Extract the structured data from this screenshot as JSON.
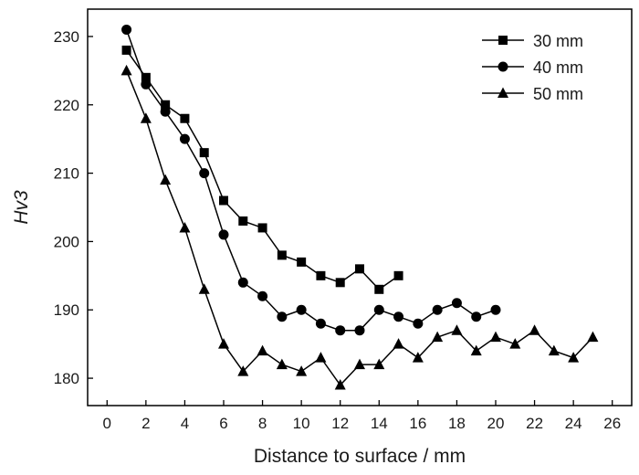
{
  "chart_data": {
    "type": "line",
    "xlabel": "Distance to surface / mm",
    "ylabel": "Hv3",
    "xlim": [
      -1,
      27
    ],
    "ylim": [
      176,
      234
    ],
    "xticks": [
      0,
      2,
      4,
      6,
      8,
      10,
      12,
      14,
      16,
      18,
      20,
      22,
      24,
      26
    ],
    "yticks": [
      180,
      190,
      200,
      210,
      220,
      230
    ],
    "grid": false,
    "legend_position": "top-right",
    "series": [
      {
        "name": "30 mm",
        "marker": "square",
        "color": "#000000",
        "x": [
          1,
          2,
          3,
          4,
          5,
          6,
          7,
          8,
          9,
          10,
          11,
          12,
          13,
          14,
          15
        ],
        "y": [
          228,
          224,
          220,
          218,
          213,
          206,
          203,
          202,
          198,
          197,
          195,
          194,
          196,
          193,
          195
        ]
      },
      {
        "name": "40 mm",
        "marker": "circle",
        "color": "#000000",
        "x": [
          1,
          2,
          3,
          4,
          5,
          6,
          7,
          8,
          9,
          10,
          11,
          12,
          13,
          14,
          15,
          16,
          17,
          18,
          19,
          20
        ],
        "y": [
          231,
          223,
          219,
          215,
          210,
          201,
          194,
          192,
          189,
          190,
          188,
          187,
          187,
          190,
          189,
          188,
          190,
          191,
          189,
          190
        ]
      },
      {
        "name": "50 mm",
        "marker": "triangle",
        "color": "#000000",
        "x": [
          1,
          2,
          3,
          4,
          5,
          6,
          7,
          8,
          9,
          10,
          11,
          12,
          13,
          14,
          15,
          16,
          17,
          18,
          19,
          20,
          21,
          22,
          23,
          24,
          25
        ],
        "y": [
          225,
          218,
          209,
          202,
          193,
          185,
          181,
          184,
          182,
          181,
          183,
          179,
          182,
          182,
          185,
          183,
          186,
          187,
          184,
          186,
          185,
          187,
          184,
          183,
          186
        ]
      }
    ]
  }
}
